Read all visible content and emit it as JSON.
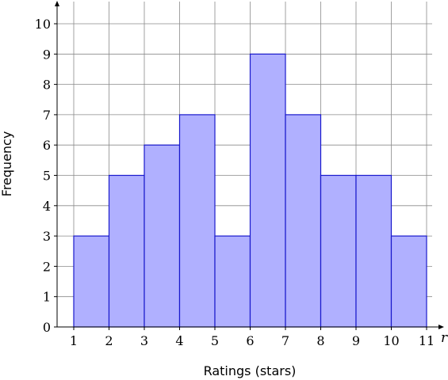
{
  "chart_data": {
    "type": "bar",
    "subtype": "histogram",
    "title": "",
    "xlabel": "Ratings (stars)",
    "ylabel": "Frequency",
    "x_axis_end_label": "r",
    "bins": [
      {
        "start": 1,
        "end": 2,
        "value": 3
      },
      {
        "start": 2,
        "end": 3,
        "value": 5
      },
      {
        "start": 3,
        "end": 4,
        "value": 6
      },
      {
        "start": 4,
        "end": 5,
        "value": 7
      },
      {
        "start": 5,
        "end": 6,
        "value": 3
      },
      {
        "start": 6,
        "end": 7,
        "value": 9
      },
      {
        "start": 7,
        "end": 8,
        "value": 7
      },
      {
        "start": 8,
        "end": 9,
        "value": 5
      },
      {
        "start": 9,
        "end": 10,
        "value": 5
      },
      {
        "start": 10,
        "end": 11,
        "value": 3
      }
    ],
    "x_ticks": [
      "1",
      "2",
      "3",
      "4",
      "5",
      "6",
      "7",
      "8",
      "9",
      "10",
      "11"
    ],
    "y_ticks": [
      "0",
      "1",
      "2",
      "3",
      "4",
      "5",
      "6",
      "7",
      "8",
      "9",
      "10"
    ],
    "xlim": [
      0.6,
      11.1
    ],
    "ylim": [
      0,
      10.6
    ],
    "grid": true,
    "bar_fill": "#b0b0ff",
    "bar_stroke": "#1a1acc"
  }
}
